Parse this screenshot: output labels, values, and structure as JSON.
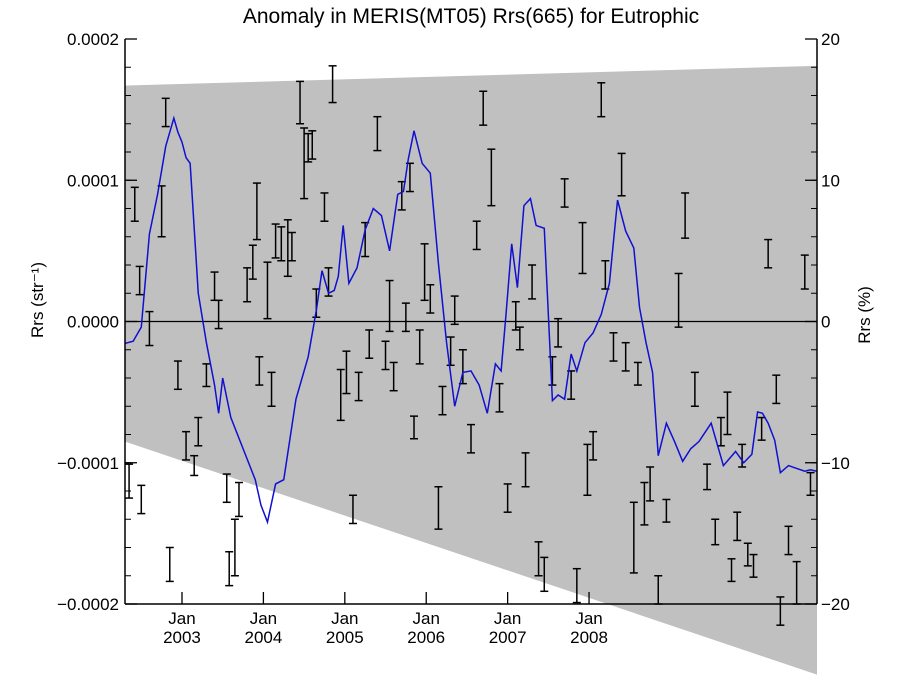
{
  "chart_data": {
    "type": "line",
    "title": "Anomaly in MERIS(MT05) Rrs(665) for Eutrophic",
    "ylabel_left": "Rrs (str⁻¹)",
    "ylabel_right": "Rrs (%)",
    "xlim": [
      2002.3,
      2010.8
    ],
    "ylim_left": [
      -0.0002,
      0.0002
    ],
    "ylim_right": [
      -20,
      20
    ],
    "x_ticks": [
      {
        "x": 2003.0,
        "top": "Jan",
        "bottom": "2003"
      },
      {
        "x": 2004.0,
        "top": "Jan",
        "bottom": "2004"
      },
      {
        "x": 2005.0,
        "top": "Jan",
        "bottom": "2005"
      },
      {
        "x": 2006.0,
        "top": "Jan",
        "bottom": "2006"
      },
      {
        "x": 2007.0,
        "top": "Jan",
        "bottom": "2007"
      },
      {
        "x": 2008.0,
        "top": "Jan",
        "bottom": "2008"
      }
    ],
    "y_ticks_left": [
      {
        "value": 0.0002,
        "label": "0.0002"
      },
      {
        "value": 0.0001,
        "label": "0.0001"
      },
      {
        "value": 0.0,
        "label": "0.0000"
      },
      {
        "value": -0.0001,
        "label": "−0.0001"
      },
      {
        "value": -0.0002,
        "label": "−0.0002"
      }
    ],
    "y_ticks_right": [
      {
        "value": 20,
        "label": "20"
      },
      {
        "value": 10,
        "label": "10"
      },
      {
        "value": 0,
        "label": "0"
      },
      {
        "value": -10,
        "label": "−10"
      },
      {
        "value": -20,
        "label": "−20"
      }
    ],
    "uncertainty_band": {
      "upper": [
        [
          2002.3,
          0.000167
        ],
        [
          2010.8,
          0.000181
        ]
      ],
      "lower": [
        [
          2002.3,
          -8.5e-05
        ],
        [
          2010.8,
          -0.00025
        ]
      ]
    },
    "colors": {
      "line": "#1010d0",
      "band": "#c0c0c0",
      "error_bars": "#000000",
      "zero_line": "#000000"
    },
    "series": [
      {
        "type": "line",
        "x": [
          2002.3,
          2002.4,
          2002.5,
          2002.6,
          2002.7,
          2002.8,
          2002.9,
          2002.95,
          2003.0,
          2003.05,
          2003.1,
          2003.2,
          2003.3,
          2003.4,
          2003.45,
          2003.5,
          2003.6,
          2003.75,
          2003.9,
          2003.97,
          2004.05,
          2004.15,
          2004.25,
          2004.4,
          2004.55,
          2004.65,
          2004.72,
          2004.8,
          2004.87,
          2004.92,
          2004.98,
          2005.05,
          2005.15,
          2005.25,
          2005.35,
          2005.45,
          2005.55,
          2005.65,
          2005.72,
          2005.78,
          2005.85,
          2005.95,
          2006.05,
          2006.15,
          2006.25,
          2006.35,
          2006.45,
          2006.55,
          2006.65,
          2006.75,
          2006.85,
          2006.92,
          2006.98,
          2007.05,
          2007.12,
          2007.2,
          2007.28,
          2007.35,
          2007.45,
          2007.55,
          2007.62,
          2007.7,
          2007.78,
          2007.85,
          2007.95,
          2008.05,
          2008.15,
          2008.25,
          2008.35,
          2008.45,
          2008.55,
          2008.62,
          2008.7,
          2008.78,
          2008.85,
          2008.95,
          2009.05,
          2009.15,
          2009.25,
          2009.35,
          2009.5,
          2009.65,
          2009.8,
          2009.9,
          2010.0,
          2010.07,
          2010.13,
          2010.2,
          2010.28,
          2010.35,
          2010.45,
          2010.55,
          2010.65,
          2010.72,
          2010.8
        ],
        "y": [
          -1.55e-05,
          -1.4e-05,
          -4e-06,
          6.2e-05,
          9e-05,
          0.000124,
          0.000144,
          0.000134,
          0.000127,
          0.000116,
          0.000112,
          2e-05,
          -1.5e-05,
          -4.5e-05,
          -6.5e-05,
          -4e-05,
          -6.8e-05,
          -9e-05,
          -0.000112,
          -0.00013,
          -0.000142,
          -0.000115,
          -0.000112,
          -5.5e-05,
          -2.5e-05,
          8e-06,
          3.6e-05,
          2e-05,
          2.2e-05,
          3.2e-05,
          6.8e-05,
          2.7e-05,
          3.8e-05,
          6.5e-05,
          8e-05,
          7.5e-05,
          5e-05,
          9e-05,
          9.2e-05,
          0.000115,
          0.000135,
          0.000112,
          0.000105,
          4.1e-05,
          -1.5e-05,
          -6e-05,
          -3.6e-05,
          -3.5e-05,
          -4.5e-05,
          -6.5e-05,
          -3e-05,
          -3.5e-05,
          5e-06,
          5.5e-05,
          2.4e-05,
          8.2e-05,
          8.7e-05,
          6.8e-05,
          6.6e-05,
          -5.6e-05,
          -5.2e-05,
          -5.5e-05,
          -2.3e-05,
          -3.5e-05,
          -1.5e-05,
          -8e-06,
          5e-06,
          2.7e-05,
          8.6e-05,
          6.4e-05,
          5.2e-05,
          1e-05,
          -1.5e-05,
          -3.6e-05,
          -9.5e-05,
          -7.2e-05,
          -8.5e-05,
          -9.9e-05,
          -9e-05,
          -8.5e-05,
          -7.2e-05,
          -0.000102,
          -9.2e-05,
          -0.0001,
          -9.4e-05,
          -6.4e-05,
          -6.5e-05,
          -7.2e-05,
          -8.4e-05,
          -0.000107,
          -0.000102,
          -0.000104,
          -0.000106,
          -0.000105,
          -0.000106
        ]
      },
      {
        "type": "errorbar",
        "points": [
          [
            2002.35,
            -0.000113,
            1.2e-05
          ],
          [
            2002.42,
            8.3e-05,
            1.2e-05
          ],
          [
            2002.48,
            2.9e-05,
            1e-05
          ],
          [
            2002.5,
            -0.000126,
            1e-05
          ],
          [
            2002.6,
            -5e-06,
            1.2e-05
          ],
          [
            2002.75,
            7.8e-05,
            1.8e-05
          ],
          [
            2002.8,
            0.000148,
            1e-05
          ],
          [
            2002.85,
            -0.000172,
            1.2e-05
          ],
          [
            2002.95,
            -3.8e-05,
            1e-05
          ],
          [
            2003.05,
            -8.8e-05,
            1e-05
          ],
          [
            2003.15,
            -0.000102,
            7e-06
          ],
          [
            2003.2,
            -7.8e-05,
            1e-05
          ],
          [
            2003.3,
            -3.8e-05,
            8e-06
          ],
          [
            2003.4,
            2.5e-05,
            1e-05
          ],
          [
            2003.45,
            5e-06,
            1e-05
          ],
          [
            2003.55,
            -0.000118,
            1e-05
          ],
          [
            2003.58,
            -0.000175,
            1.2e-05
          ],
          [
            2003.65,
            -0.00016,
            2e-05
          ],
          [
            2003.7,
            -0.000126,
            1.2e-05
          ],
          [
            2003.8,
            2.6e-05,
            1.2e-05
          ],
          [
            2003.87,
            4.2e-05,
            1.2e-05
          ],
          [
            2003.92,
            7.8e-05,
            2e-05
          ],
          [
            2003.95,
            -3.5e-05,
            1e-05
          ],
          [
            2004.05,
            2.2e-05,
            2e-05
          ],
          [
            2004.1,
            -4.8e-05,
            1.2e-05
          ],
          [
            2004.15,
            5.7e-05,
            1.2e-05
          ],
          [
            2004.22,
            5.5e-05,
            1.2e-05
          ],
          [
            2004.3,
            5.2e-05,
            2e-05
          ],
          [
            2004.35,
            5.3e-05,
            1e-05
          ],
          [
            2004.45,
            0.000155,
            1.5e-05
          ],
          [
            2004.5,
            0.000112,
            2.5e-05
          ],
          [
            2004.55,
            0.000123,
            1e-05
          ],
          [
            2004.6,
            0.000125,
            1e-05
          ],
          [
            2004.65,
            1.3e-05,
            1e-05
          ],
          [
            2004.75,
            8.1e-05,
            1e-05
          ],
          [
            2004.8,
            2.8e-05,
            1e-05
          ],
          [
            2004.85,
            0.000168,
            1.3e-05
          ],
          [
            2004.95,
            -5.2e-05,
            1.8e-05
          ],
          [
            2005.02,
            -3.6e-05,
            1.5e-05
          ],
          [
            2005.1,
            -0.000133,
            1e-05
          ],
          [
            2005.17,
            -4.6e-05,
            1e-05
          ],
          [
            2005.25,
            5.8e-05,
            1.2e-05
          ],
          [
            2005.3,
            -1.6e-05,
            1e-05
          ],
          [
            2005.4,
            0.000133,
            1.2e-05
          ],
          [
            2005.5,
            -2.4e-05,
            1e-05
          ],
          [
            2005.55,
            1.1e-05,
            1.8e-05
          ],
          [
            2005.6,
            -3.9e-05,
            1e-05
          ],
          [
            2005.7,
            8.9e-05,
            1e-05
          ],
          [
            2005.75,
            3e-06,
            1e-05
          ],
          [
            2005.8,
            0.000102,
            1e-05
          ],
          [
            2005.85,
            -7.5e-05,
            8e-06
          ],
          [
            2005.92,
            -1.8e-05,
            1.2e-05
          ],
          [
            2005.98,
            3.5e-05,
            2e-05
          ],
          [
            2006.05,
            1.6e-05,
            1e-05
          ],
          [
            2006.15,
            -0.000132,
            1.5e-05
          ],
          [
            2006.2,
            -5.6e-05,
            1e-05
          ],
          [
            2006.3,
            -2.1e-05,
            1e-05
          ],
          [
            2006.35,
            8e-06,
            1e-05
          ],
          [
            2006.45,
            -3.2e-05,
            1.2e-05
          ],
          [
            2006.55,
            -8.3e-05,
            1e-05
          ],
          [
            2006.62,
            6.1e-05,
            1e-05
          ],
          [
            2006.7,
            0.000151,
            1.2e-05
          ],
          [
            2006.8,
            0.000102,
            2e-05
          ],
          [
            2006.9,
            -5.4e-05,
            1e-05
          ],
          [
            2007.0,
            -0.000125,
            1e-05
          ],
          [
            2007.1,
            4e-06,
            1e-05
          ],
          [
            2007.15,
            -1.2e-05,
            8e-06
          ],
          [
            2007.22,
            -0.000105,
            1.2e-05
          ],
          [
            2007.3,
            2.8e-05,
            1.2e-05
          ],
          [
            2007.38,
            -0.000168,
            1.2e-05
          ],
          [
            2007.45,
            -0.000179,
            1.2e-05
          ],
          [
            2007.55,
            -3.5e-05,
            1e-05
          ],
          [
            2007.62,
            -8e-06,
            1e-05
          ],
          [
            2007.7,
            9.1e-05,
            1e-05
          ],
          [
            2007.78,
            -4.5e-05,
            1e-05
          ],
          [
            2007.85,
            -0.000187,
            1.2e-05
          ],
          [
            2007.92,
            5.2e-05,
            1.8e-05
          ],
          [
            2007.98,
            -0.000105,
            1.8e-05
          ],
          [
            2008.05,
            -8.8e-05,
            1e-05
          ],
          [
            2008.15,
            0.000157,
            1.2e-05
          ],
          [
            2008.2,
            3.3e-05,
            1e-05
          ],
          [
            2008.3,
            -1.8e-05,
            1e-05
          ],
          [
            2008.4,
            0.000104,
            1.5e-05
          ],
          [
            2008.45,
            -2.5e-05,
            1e-05
          ],
          [
            2008.55,
            -0.000153,
            2.5e-05
          ],
          [
            2008.6,
            -3.7e-05,
            8e-06
          ],
          [
            2008.68,
            -0.000129,
            1.5e-05
          ],
          [
            2008.75,
            -0.000115,
            1.2e-05
          ],
          [
            2008.85,
            -0.00019,
            1e-05
          ],
          [
            2008.95,
            -0.000134,
            8e-06
          ],
          [
            2009.1,
            1.5e-05,
            1.9e-05
          ],
          [
            2009.18,
            7.5e-05,
            1.6e-05
          ],
          [
            2009.3,
            -4.8e-05,
            1.2e-05
          ],
          [
            2009.45,
            -0.00011,
            9e-06
          ],
          [
            2009.55,
            -0.000149,
            9e-06
          ],
          [
            2009.62,
            -7.8e-05,
            1e-05
          ],
          [
            2009.7,
            -6.5e-05,
            1.5e-05
          ],
          [
            2009.75,
            -0.000176,
            8e-06
          ],
          [
            2009.82,
            -0.000145,
            1e-05
          ],
          [
            2009.88,
            -9.5e-05,
            8e-06
          ],
          [
            2009.95,
            -0.000165,
            8e-06
          ],
          [
            2010.02,
            -0.000173,
            8e-06
          ],
          [
            2010.12,
            -7.6e-05,
            8e-06
          ],
          [
            2010.2,
            4.8e-05,
            1e-05
          ],
          [
            2010.3,
            -4.8e-05,
            1e-05
          ],
          [
            2010.35,
            -0.000205,
            1e-05
          ],
          [
            2010.45,
            -0.000155,
            1e-05
          ],
          [
            2010.55,
            -0.000185,
            1.5e-05
          ],
          [
            2010.65,
            3.5e-05,
            1.2e-05
          ],
          [
            2010.72,
            -0.000115,
            8e-06
          ]
        ]
      }
    ]
  }
}
